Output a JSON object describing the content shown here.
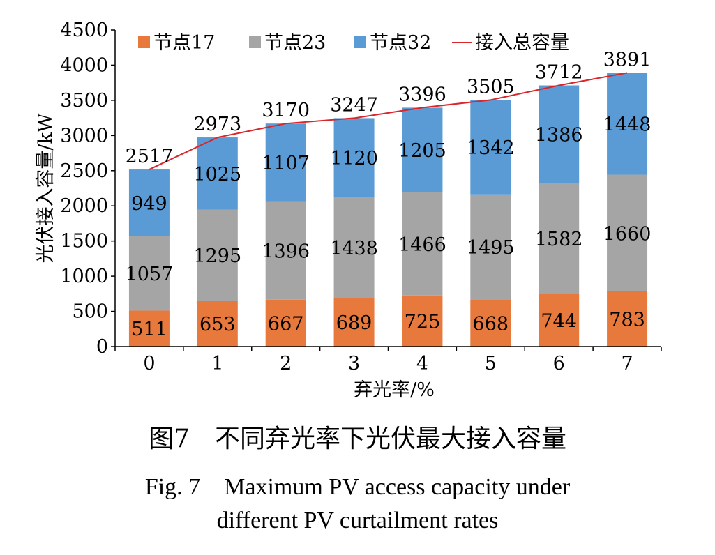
{
  "chart_data": {
    "type": "bar",
    "stacked": true,
    "categories": [
      "0",
      "1",
      "2",
      "3",
      "4",
      "5",
      "6",
      "7"
    ],
    "series": [
      {
        "name": "节点17",
        "color": "#E8793D",
        "values": [
          511,
          653,
          667,
          689,
          725,
          668,
          744,
          783
        ]
      },
      {
        "name": "节点23",
        "color": "#A5A5A6",
        "values": [
          1057,
          1295,
          1396,
          1438,
          1466,
          1495,
          1582,
          1660
        ]
      },
      {
        "name": "节点32",
        "color": "#5B9BD5",
        "values": [
          949,
          1025,
          1107,
          1120,
          1205,
          1342,
          1386,
          1448
        ]
      }
    ],
    "line_series": {
      "name": "接入总容量",
      "color": "#D9262B",
      "values": [
        2517,
        2973,
        3170,
        3247,
        3396,
        3505,
        3712,
        3891
      ]
    },
    "xlabel": "弃光率/%",
    "ylabel": "光伏接入容量/kW",
    "ylim": [
      0,
      4500
    ],
    "yticks": [
      0,
      500,
      1000,
      1500,
      2000,
      2500,
      3000,
      3500,
      4000,
      4500
    ],
    "grid": false,
    "legend": "top"
  },
  "caption": {
    "zh": "图7　不同弃光率下光伏最大接入容量",
    "en_line1": "Fig. 7　Maximum PV access capacity under",
    "en_line2": "different PV curtailment rates"
  }
}
